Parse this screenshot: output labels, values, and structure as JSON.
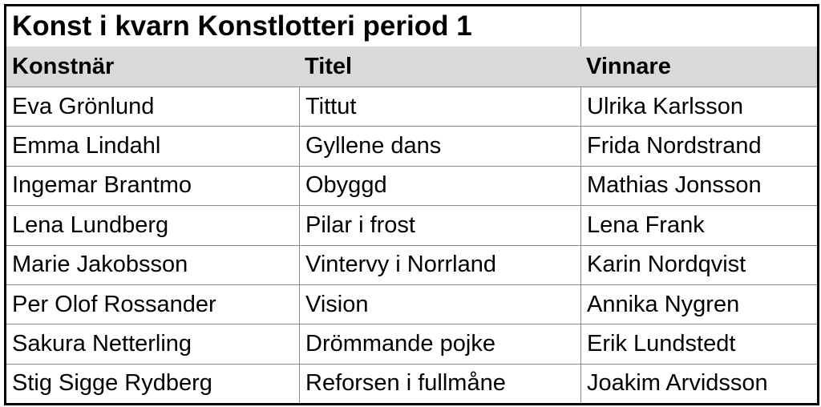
{
  "title": "Konst i kvarn Konstlotteri period 1",
  "table": {
    "header": [
      "Konstnär",
      "Titel",
      "Vinnare"
    ],
    "rows": [
      [
        "Eva Grönlund",
        "Tittut",
        "Ulrika Karlsson"
      ],
      [
        "Emma Lindahl",
        "Gyllene dans",
        "Frida Nordstrand"
      ],
      [
        "Ingemar Brantmo",
        "Obyggd",
        "Mathias Jonsson"
      ],
      [
        "Lena Lundberg",
        "Pilar i frost",
        "Lena Frank"
      ],
      [
        "Marie Jakobsson",
        "Vintervy i Norrland",
        "Karin Nordqvist"
      ],
      [
        "Per Olof Rossander",
        "Vision",
        "Annika Nygren"
      ],
      [
        "Sakura Netterling",
        "Drömmande pojke",
        "Erik Lundstedt"
      ],
      [
        "Stig Sigge Rydberg",
        "Reforsen i fullmåne",
        "Joakim Arvidsson"
      ]
    ]
  }
}
